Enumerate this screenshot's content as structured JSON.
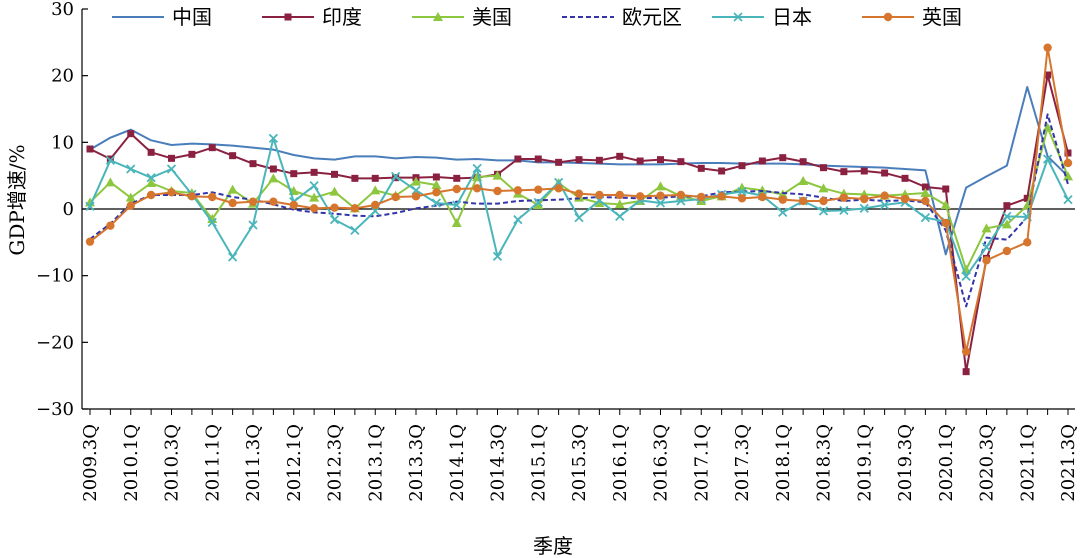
{
  "chart_data": {
    "type": "line",
    "title": "",
    "xlabel": "季度",
    "ylabel": "GDP增速/%",
    "ylim": [
      -30,
      30
    ],
    "yticks": [
      30,
      20,
      10,
      0,
      -10,
      -20,
      -30
    ],
    "ytick_labels": [
      "30",
      "20",
      "10",
      "0",
      "−10",
      "−20",
      "−30"
    ],
    "grid": false,
    "legend_position": "top",
    "categories": [
      "2009.3Q",
      "2009.4Q",
      "2010.1Q",
      "2010.2Q",
      "2010.3Q",
      "2010.4Q",
      "2011.1Q",
      "2011.2Q",
      "2011.3Q",
      "2011.4Q",
      "2012.1Q",
      "2012.2Q",
      "2012.3Q",
      "2012.4Q",
      "2013.1Q",
      "2013.2Q",
      "2013.3Q",
      "2013.4Q",
      "2014.1Q",
      "2014.2Q",
      "2014.3Q",
      "2014.4Q",
      "2015.1Q",
      "2015.2Q",
      "2015.3Q",
      "2015.4Q",
      "2016.1Q",
      "2016.2Q",
      "2016.3Q",
      "2016.4Q",
      "2017.1Q",
      "2017.2Q",
      "2017.3Q",
      "2017.4Q",
      "2018.1Q",
      "2018.2Q",
      "2018.3Q",
      "2018.4Q",
      "2019.1Q",
      "2019.2Q",
      "2019.3Q",
      "2019.4Q",
      "2020.1Q",
      "2020.2Q",
      "2020.3Q",
      "2020.4Q",
      "2021.1Q",
      "2021.2Q",
      "2021.3Q"
    ],
    "xtick_labels": [
      "2009.3Q",
      "2010.1Q",
      "2010.3Q",
      "2011.1Q",
      "2011.3Q",
      "2012.1Q",
      "2012.3Q",
      "2013.1Q",
      "2013.3Q",
      "2014.1Q",
      "2014.3Q",
      "2015.1Q",
      "2015.3Q",
      "2016.1Q",
      "2016.3Q",
      "2017.1Q",
      "2017.3Q",
      "2018.1Q",
      "2018.3Q",
      "2019.1Q",
      "2019.3Q",
      "2020.1Q",
      "2020.3Q",
      "2021.1Q",
      "2021.3Q"
    ],
    "series": [
      {
        "name": "中国",
        "color": "#4a7ebb",
        "marker": "none",
        "dash": "solid",
        "values": [
          8.9,
          10.7,
          11.9,
          10.3,
          9.6,
          9.8,
          9.7,
          9.5,
          9.2,
          8.9,
          8.1,
          7.6,
          7.4,
          7.9,
          7.9,
          7.6,
          7.8,
          7.7,
          7.4,
          7.5,
          7.3,
          7.3,
          7.0,
          7.0,
          6.9,
          6.8,
          6.7,
          6.7,
          6.7,
          6.8,
          6.9,
          6.9,
          6.8,
          6.8,
          6.8,
          6.7,
          6.5,
          6.4,
          6.3,
          6.2,
          6.0,
          5.8,
          -6.8,
          3.2,
          4.9,
          6.5,
          18.3,
          7.9,
          4.9
        ]
      },
      {
        "name": "印度",
        "color": "#8b2140",
        "marker": "square",
        "dash": "solid",
        "values": [
          9.0,
          7.5,
          11.3,
          8.5,
          7.6,
          8.2,
          9.2,
          8.0,
          6.8,
          6.0,
          5.3,
          5.5,
          5.2,
          4.6,
          4.6,
          4.7,
          4.7,
          4.8,
          4.6,
          4.7,
          5.2,
          7.5,
          7.5,
          7.0,
          7.4,
          7.3,
          7.9,
          7.2,
          7.4,
          7.1,
          6.1,
          5.7,
          6.5,
          7.2,
          7.7,
          7.1,
          6.2,
          5.6,
          5.7,
          5.4,
          4.6,
          3.3,
          3.0,
          -24.4,
          -7.4,
          0.5,
          1.6,
          20.1,
          8.4
        ]
      },
      {
        "name": "美国",
        "color": "#8dc63f",
        "marker": "triangle",
        "dash": "solid",
        "values": [
          1.0,
          4.0,
          1.7,
          3.9,
          2.7,
          2.4,
          -1.5,
          2.9,
          0.8,
          4.6,
          2.7,
          1.7,
          2.6,
          0.1,
          2.8,
          2.0,
          4.1,
          3.6,
          -2.1,
          4.8,
          5.0,
          2.3,
          0.6,
          3.9,
          1.7,
          0.9,
          0.7,
          1.2,
          3.4,
          1.9,
          1.2,
          1.9,
          3.2,
          2.8,
          2.2,
          4.2,
          3.1,
          2.3,
          2.2,
          2.0,
          2.2,
          2.4,
          0.6,
          -9.1,
          -2.9,
          -2.3,
          0.5,
          12.2,
          4.9
        ]
      },
      {
        "name": "欧元区",
        "color": "#3333aa",
        "marker": "none",
        "dash": "dashed",
        "values": [
          -4.5,
          -2.2,
          0.8,
          2.1,
          2.1,
          2.1,
          2.5,
          1.8,
          1.4,
          0.7,
          -0.1,
          -0.5,
          -0.7,
          -1.0,
          -1.1,
          -0.6,
          0.1,
          0.5,
          1.1,
          0.8,
          0.8,
          1.2,
          1.3,
          1.4,
          1.6,
          1.8,
          1.7,
          1.6,
          1.7,
          1.9,
          1.9,
          2.5,
          2.6,
          2.7,
          2.4,
          2.2,
          1.7,
          1.2,
          1.4,
          1.2,
          1.3,
          1.0,
          -3.2,
          -14.6,
          -4.3,
          -4.6,
          -1.2,
          14.2,
          3.7
        ]
      },
      {
        "name": "日本",
        "color": "#4ab5ba",
        "marker": "x",
        "dash": "solid",
        "values": [
          0.4,
          7.3,
          6.0,
          4.7,
          6.0,
          2.2,
          -2.0,
          -7.2,
          -2.4,
          10.6,
          1.1,
          3.5,
          -1.6,
          -3.2,
          -0.3,
          4.9,
          2.8,
          0.9,
          0.6,
          6.1,
          -7.1,
          -1.6,
          1.0,
          4.0,
          -1.3,
          1.3,
          -1.1,
          1.3,
          0.9,
          1.2,
          1.5,
          2.2,
          2.6,
          2.0,
          -0.5,
          1.2,
          -0.3,
          -0.2,
          0.1,
          0.6,
          1.0,
          -1.3,
          -1.9,
          -10.1,
          -5.7,
          -1.1,
          -1.2,
          7.5,
          1.4
        ]
      },
      {
        "name": "英国",
        "color": "#d6752e",
        "marker": "circle",
        "dash": "solid",
        "values": [
          -4.9,
          -2.5,
          0.5,
          2.1,
          2.5,
          1.9,
          1.8,
          0.9,
          1.1,
          1.1,
          0.6,
          0.1,
          0.2,
          0.1,
          0.6,
          1.8,
          1.9,
          2.5,
          3.0,
          3.1,
          2.7,
          2.8,
          2.9,
          3.1,
          2.3,
          2.1,
          2.1,
          1.9,
          2.0,
          2.1,
          1.8,
          1.9,
          1.6,
          1.8,
          1.4,
          1.2,
          1.2,
          1.7,
          1.5,
          2.0,
          1.5,
          1.2,
          -2.1,
          -21.4,
          -7.7,
          -6.3,
          -5.0,
          24.2,
          6.9
        ]
      }
    ]
  }
}
